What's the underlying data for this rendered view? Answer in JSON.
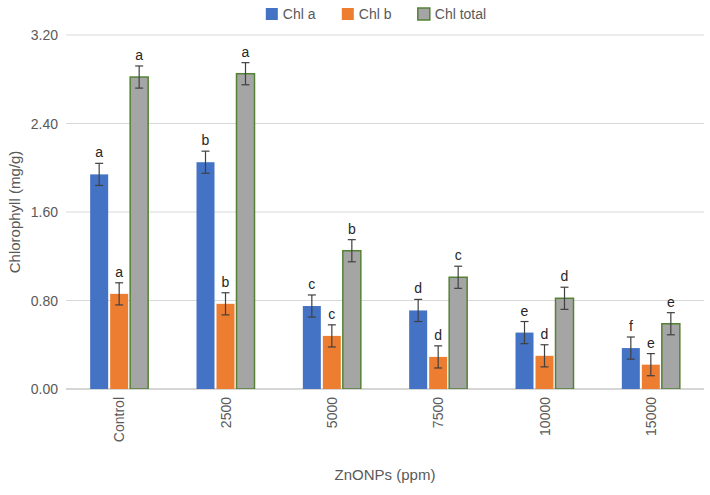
{
  "chart_data": {
    "type": "bar",
    "xlabel": "ZnONPs (ppm)",
    "ylabel": "Chlorophyll (mg/g)",
    "categories": [
      "Control",
      "2500",
      "5000",
      "7500",
      "10000",
      "15000"
    ],
    "series": [
      {
        "name": "Chl a",
        "color": "#4472c4",
        "values": [
          1.94,
          2.05,
          0.75,
          0.71,
          0.51,
          0.37
        ],
        "errors": [
          0.1,
          0.1,
          0.1,
          0.1,
          0.1,
          0.1
        ],
        "letters": [
          "a",
          "b",
          "c",
          "d",
          "e",
          "f"
        ]
      },
      {
        "name": "Chl b",
        "color": "#ed7d31",
        "values": [
          0.86,
          0.77,
          0.48,
          0.29,
          0.3,
          0.22
        ],
        "errors": [
          0.1,
          0.1,
          0.1,
          0.1,
          0.1,
          0.1
        ],
        "letters": [
          "a",
          "b",
          "c",
          "d",
          "d",
          "e"
        ]
      },
      {
        "name": "Chl total",
        "color": "#a5a5a5",
        "values": [
          2.82,
          2.85,
          1.25,
          1.01,
          0.82,
          0.59
        ],
        "errors": [
          0.1,
          0.1,
          0.1,
          0.1,
          0.1,
          0.1
        ],
        "letters": [
          "a",
          "a",
          "b",
          "c",
          "d",
          "e"
        ]
      }
    ],
    "ylim": [
      0,
      3.2
    ],
    "yticks": [
      {
        "value": 0,
        "label": "0.00"
      },
      {
        "value": 0.8,
        "label": "0.80"
      },
      {
        "value": 1.6,
        "label": "1.60"
      },
      {
        "value": 2.4,
        "label": "2.40"
      },
      {
        "value": 3.2,
        "label": "3.20"
      }
    ],
    "grid": true,
    "legend": "top"
  }
}
